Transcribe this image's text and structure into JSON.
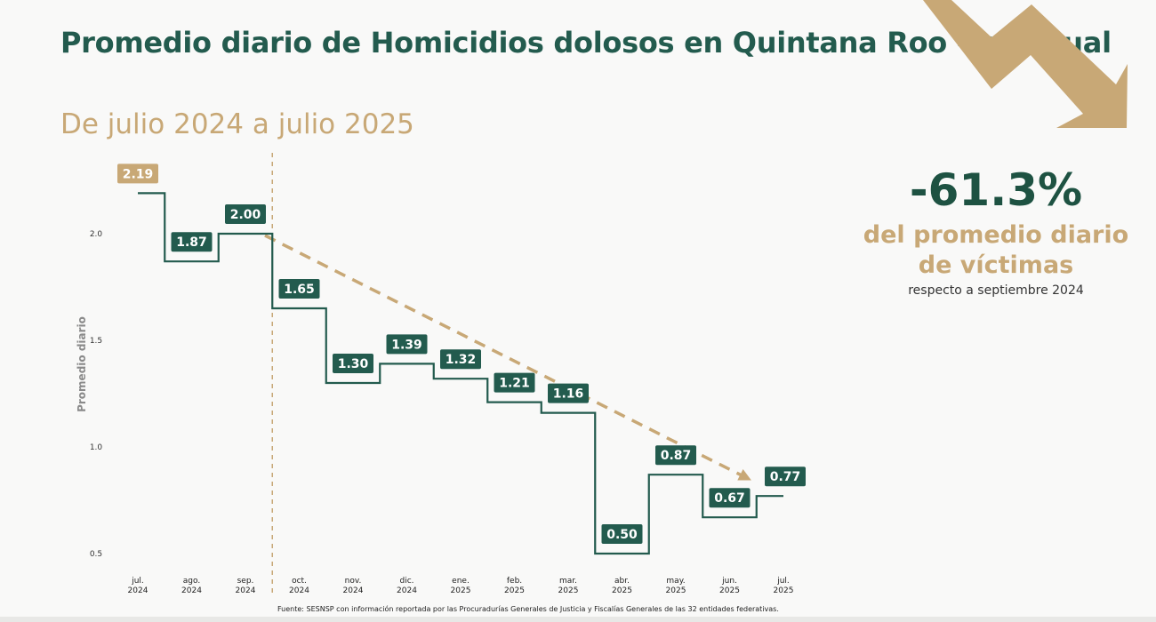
{
  "title": "Promedio diario de Homicidios dolosos en Quintana Roo - mensual",
  "subtitle": "De julio 2024 a julio 2025",
  "highlight": {
    "percent": "-61.3%",
    "text": "del promedio diario de víctimas",
    "subtext": "respecto a septiembre 2024"
  },
  "source": "Fuente: SESNSP con información reportada por las Procuradurías Generales de Justicia y Fiscalías Generales de las 32 entidades federativas.",
  "colors": {
    "primary": "#235b4e",
    "accent": "#c8a876",
    "highlight_label": "#c8a876"
  },
  "chart_data": {
    "type": "line",
    "step": true,
    "ylabel": "Promedio diario",
    "ylim": [
      0.5,
      2.2
    ],
    "yticks": [
      {
        "value": 0.5,
        "label": "0.5"
      },
      {
        "value": 1.0,
        "label": "1.0"
      },
      {
        "value": 1.5,
        "label": "1.5"
      },
      {
        "value": 2.0,
        "label": "2.0"
      }
    ],
    "categories": [
      [
        "jul.",
        "2024"
      ],
      [
        "ago.",
        "2024"
      ],
      [
        "sep.",
        "2024"
      ],
      [
        "oct.",
        "2024"
      ],
      [
        "nov.",
        "2024"
      ],
      [
        "dic.",
        "2024"
      ],
      [
        "ene.",
        "2025"
      ],
      [
        "feb.",
        "2025"
      ],
      [
        "mar.",
        "2025"
      ],
      [
        "abr.",
        "2025"
      ],
      [
        "may.",
        "2025"
      ],
      [
        "jun.",
        "2025"
      ],
      [
        "jul.",
        "2025"
      ]
    ],
    "values": [
      2.19,
      1.87,
      2.0,
      1.65,
      1.3,
      1.39,
      1.32,
      1.21,
      1.16,
      0.5,
      0.87,
      0.67,
      0.77
    ],
    "labels": [
      "2.19",
      "1.87",
      "2.00",
      "1.65",
      "1.30",
      "1.39",
      "1.32",
      "1.21",
      "1.16",
      "0.50",
      "0.87",
      "0.67",
      "0.77"
    ],
    "highlighted_index": 0,
    "reference_line_after_index": 2,
    "trend": {
      "from_index": 2,
      "to_index": 12,
      "from_value": 2.0,
      "to_value": 0.8
    }
  }
}
